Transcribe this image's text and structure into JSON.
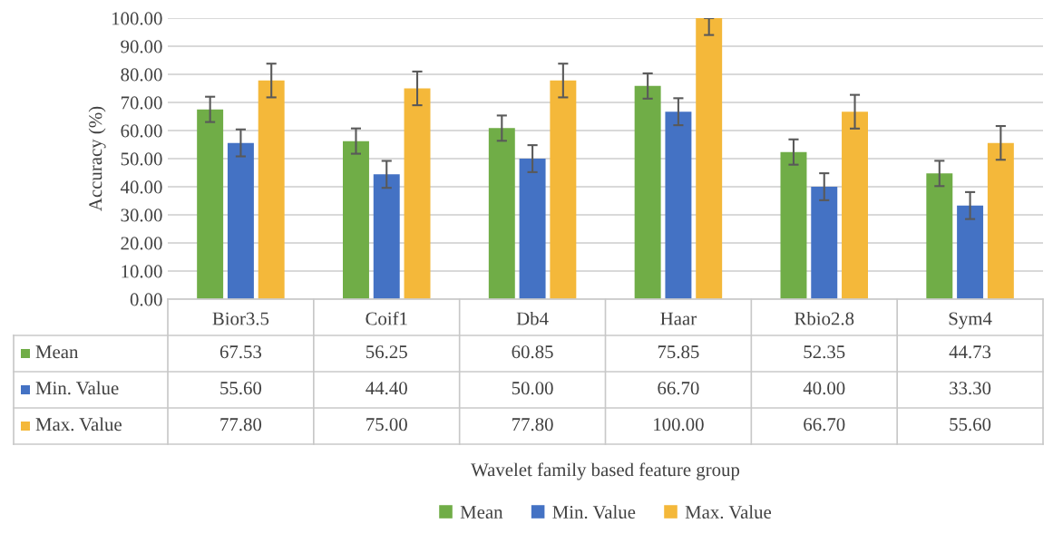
{
  "chart_data": {
    "type": "bar",
    "annotations": [
      "Wavelet family based feature group"
    ],
    "ylabel": "Accuracy (%)",
    "categories": [
      "Bior3.5",
      "Coif1",
      "Db4",
      "Haar",
      "Rbio2.8",
      "Sym4"
    ],
    "series": [
      {
        "name": "Mean",
        "color": "#70ad47",
        "values": [
          67.53,
          56.25,
          60.85,
          75.85,
          52.35,
          44.73
        ],
        "errors": [
          4.5,
          4.5,
          4.5,
          4.5,
          4.5,
          4.5
        ],
        "value_labels": [
          "67.53",
          "56.25",
          "60.85",
          "75.85",
          "52.35",
          "44.73"
        ]
      },
      {
        "name": "Min. Value",
        "color": "#4472c4",
        "values": [
          55.6,
          44.4,
          50.0,
          66.7,
          40.0,
          33.3
        ],
        "errors": [
          4.8,
          4.8,
          4.8,
          4.8,
          4.8,
          4.8
        ],
        "value_labels": [
          "55.60",
          "44.40",
          "50.00",
          "66.70",
          "40.00",
          "33.30"
        ]
      },
      {
        "name": "Max. Value",
        "color": "#f4b83a",
        "values": [
          77.8,
          75.0,
          77.8,
          100.0,
          66.7,
          55.6
        ],
        "errors": [
          6,
          6,
          6,
          [
            94,
            100
          ],
          6,
          6
        ],
        "value_labels": [
          "77.80",
          "75.00",
          "77.80",
          "100.00",
          "66.70",
          "55.60"
        ]
      }
    ],
    "ylim": [
      0,
      100
    ],
    "yticks": [
      {
        "value": 0,
        "label": "0.00"
      },
      {
        "value": 10,
        "label": "10.00"
      },
      {
        "value": 20,
        "label": "20.00"
      },
      {
        "value": 30,
        "label": "30.00"
      },
      {
        "value": 40,
        "label": "40.00"
      },
      {
        "value": 50,
        "label": "50.00"
      },
      {
        "value": 60,
        "label": "60.00"
      },
      {
        "value": 70,
        "label": "70.00"
      },
      {
        "value": 80,
        "label": "80.00"
      },
      {
        "value": 90,
        "label": "90.00"
      },
      {
        "value": 100,
        "label": "100.00"
      }
    ],
    "grid": "y",
    "legend": "bottom"
  }
}
